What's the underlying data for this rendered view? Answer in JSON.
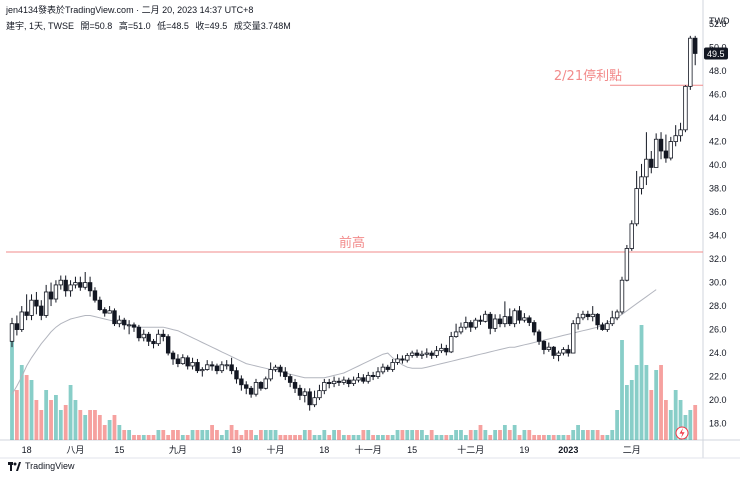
{
  "header": {
    "publisher": "jen4134發表於TradingView.com",
    "sep": "·",
    "datetime": "二月 20, 2023 14:37 UTC+8"
  },
  "legend": {
    "symbol": "建宇, 1天, TWSE",
    "open": "開=50.8",
    "high": "高=51.0",
    "low": "低=48.5",
    "close": "收=49.5",
    "volume": "成交量3.748M"
  },
  "footer": {
    "brand": "TradingView"
  },
  "colors": {
    "up": "#26a69a",
    "down": "#ef5350",
    "candle_up_body": "#ffffff",
    "candle_outline": "#131722",
    "annotation": "#f28b8b",
    "ma": "#b2b5be",
    "price_tag": "#131722"
  },
  "icons": {
    "footer_logo": "tradingview-logo-icon",
    "flash": "lightning-icon"
  },
  "chart_data": {
    "type": "candlestick",
    "currency": "TWD",
    "ylim": [
      16.6,
      53.2
    ],
    "y_ticks": [
      "18.0",
      "20.0",
      "22.0",
      "24.0",
      "26.0",
      "28.0",
      "30.0",
      "32.0",
      "34.0",
      "36.0",
      "38.0",
      "40.0",
      "42.0",
      "44.0",
      "46.0",
      "48.0",
      "50.0",
      "52.0"
    ],
    "x_ticks": [
      {
        "label": "18",
        "i": 3
      },
      {
        "label": "八月",
        "i": 13
      },
      {
        "label": "15",
        "i": 22
      },
      {
        "label": "九月",
        "i": 34
      },
      {
        "label": "19",
        "i": 46
      },
      {
        "label": "十月",
        "i": 54
      },
      {
        "label": "18",
        "i": 64
      },
      {
        "label": "十一月",
        "i": 73
      },
      {
        "label": "15",
        "i": 82
      },
      {
        "label": "十二月",
        "i": 94
      },
      {
        "label": "19",
        "i": 105
      },
      {
        "label": "2023",
        "i": 114
      },
      {
        "label": "二月",
        "i": 127
      }
    ],
    "last_price": "49.5",
    "annotations": [
      {
        "label": "前高",
        "price": 32.6
      },
      {
        "label": "2/21停利點",
        "price": 46.8
      }
    ],
    "ma_values": [
      20.5,
      21.2,
      22.0,
      22.9,
      23.6,
      24.2,
      24.8,
      25.3,
      25.8,
      26.2,
      26.5,
      26.7,
      26.9,
      27.0,
      27.1,
      27.2,
      27.2,
      27.1,
      27.0,
      26.9,
      26.8,
      26.7,
      26.6,
      26.5,
      26.4,
      26.3,
      26.2,
      26.2,
      26.2,
      26.2,
      26.2,
      26.2,
      26.1,
      26.0,
      25.9,
      25.7,
      25.5,
      25.3,
      25.1,
      24.9,
      24.7,
      24.5,
      24.3,
      24.1,
      23.9,
      23.7,
      23.5,
      23.3,
      23.1,
      23.0,
      22.9,
      22.8,
      22.7,
      22.6,
      22.5,
      22.4,
      22.3,
      22.2,
      22.1,
      22.0,
      21.9,
      21.9,
      21.9,
      21.9,
      21.9,
      22.0,
      22.1,
      22.2,
      22.3,
      22.5,
      22.7,
      22.9,
      23.1,
      23.3,
      23.5,
      23.7,
      23.9,
      24.0,
      23.6,
      23.3,
      23.0,
      22.8,
      22.7,
      22.7,
      22.7,
      22.8,
      22.9,
      23.0,
      23.1,
      23.2,
      23.3,
      23.4,
      23.5,
      23.6,
      23.7,
      23.8,
      23.9,
      24.0,
      24.1,
      24.2,
      24.3,
      24.4,
      24.5,
      24.5,
      24.6,
      24.7,
      24.8,
      24.9,
      25.0,
      25.1,
      25.2,
      25.3,
      25.4,
      25.5,
      25.6,
      25.7,
      25.8,
      25.9,
      26.0,
      26.1,
      26.2,
      26.4,
      26.6,
      26.8,
      27.0,
      27.3,
      27.6,
      27.9,
      28.2,
      28.5,
      28.8,
      29.1,
      29.4
    ],
    "candles": [
      [
        25.0,
        26.5,
        27.0,
        24.5,
        2
      ],
      [
        26.5,
        26.0,
        27.2,
        25.5,
        1
      ],
      [
        26.0,
        27.5,
        28.0,
        25.8,
        1.5
      ],
      [
        27.5,
        27.2,
        29.0,
        26.8,
        1.3
      ],
      [
        27.2,
        28.5,
        29.0,
        26.8,
        1.2
      ],
      [
        28.5,
        28.0,
        29.2,
        27.3,
        0.8
      ],
      [
        28.0,
        27.2,
        28.5,
        26.8,
        0.6
      ],
      [
        27.2,
        29.2,
        29.8,
        27.0,
        1.0
      ],
      [
        29.2,
        28.6,
        30.0,
        28.0,
        0.8
      ],
      [
        28.6,
        29.8,
        30.2,
        28.3,
        0.9
      ],
      [
        29.8,
        30.2,
        30.6,
        29.4,
        0.6
      ],
      [
        30.2,
        29.3,
        30.6,
        28.8,
        0.7
      ],
      [
        29.3,
        29.8,
        30.2,
        28.8,
        1.1
      ],
      [
        29.8,
        30.0,
        30.5,
        29.5,
        0.8
      ],
      [
        30.0,
        29.6,
        30.5,
        29.3,
        0.6
      ],
      [
        29.6,
        30.0,
        30.9,
        29.4,
        0.5
      ],
      [
        30.0,
        29.3,
        30.5,
        28.8,
        0.6
      ],
      [
        29.3,
        28.5,
        29.6,
        28.3,
        0.6
      ],
      [
        28.5,
        27.7,
        28.8,
        27.6,
        0.5
      ],
      [
        27.7,
        27.4,
        27.9,
        27.1,
        0.3
      ],
      [
        27.4,
        27.6,
        28.0,
        27.4,
        0.4
      ],
      [
        27.6,
        26.5,
        27.8,
        26.3,
        0.5
      ],
      [
        26.5,
        26.8,
        27.2,
        26.2,
        0.3
      ],
      [
        26.8,
        26.4,
        27.0,
        26.0,
        0.2
      ],
      [
        26.4,
        26.4,
        26.8,
        25.6,
        0.2
      ],
      [
        26.4,
        26.2,
        26.6,
        25.8,
        0.1
      ],
      [
        26.2,
        25.3,
        26.4,
        25.0,
        0.1
      ],
      [
        25.3,
        25.6,
        26.0,
        25.0,
        0.1
      ],
      [
        25.6,
        25.0,
        25.8,
        24.6,
        0.1
      ],
      [
        25.0,
        24.8,
        25.2,
        24.4,
        0.1
      ],
      [
        24.8,
        25.6,
        26.0,
        24.6,
        0.2
      ],
      [
        25.6,
        25.4,
        26.0,
        25.0,
        0.2
      ],
      [
        25.4,
        24.0,
        25.6,
        23.8,
        0.1
      ],
      [
        24.0,
        23.5,
        24.2,
        23.0,
        0.2
      ],
      [
        23.5,
        23.1,
        23.9,
        22.8,
        0.2
      ],
      [
        23.1,
        23.6,
        23.9,
        23.0,
        0.1
      ],
      [
        23.6,
        22.9,
        23.8,
        22.6,
        0.1
      ],
      [
        22.9,
        23.2,
        23.6,
        22.6,
        0.2
      ],
      [
        23.2,
        22.5,
        23.5,
        22.3,
        0.2
      ],
      [
        22.5,
        22.6,
        22.8,
        22.0,
        0.2
      ],
      [
        22.6,
        23.0,
        23.4,
        22.5,
        0.2
      ],
      [
        23.0,
        22.9,
        23.3,
        22.5,
        0.3
      ],
      [
        22.9,
        22.5,
        23.1,
        22.2,
        0.2
      ],
      [
        22.5,
        23.0,
        23.3,
        22.3,
        0.1
      ],
      [
        23.0,
        23.0,
        23.4,
        22.6,
        0.2
      ],
      [
        23.0,
        22.5,
        23.6,
        22.2,
        0.3
      ],
      [
        22.5,
        21.8,
        22.8,
        21.4,
        0.2
      ],
      [
        21.8,
        21.3,
        22.1,
        20.8,
        0.1
      ],
      [
        21.3,
        21.0,
        21.6,
        20.5,
        0.2
      ],
      [
        21.0,
        20.5,
        21.2,
        20.2,
        0.2
      ],
      [
        20.5,
        21.5,
        21.8,
        20.3,
        0.1
      ],
      [
        21.5,
        21.0,
        21.6,
        20.8,
        0.2
      ],
      [
        21.0,
        21.8,
        22.0,
        20.9,
        0.2
      ],
      [
        21.8,
        22.6,
        23.2,
        21.6,
        0.2
      ],
      [
        22.6,
        22.8,
        23.0,
        22.4,
        0.2
      ],
      [
        22.8,
        22.4,
        23.0,
        22.0,
        0.1
      ],
      [
        22.4,
        22.0,
        22.8,
        21.7,
        0.1
      ],
      [
        22.0,
        21.5,
        22.2,
        21.1,
        0.1
      ],
      [
        21.5,
        21.0,
        21.8,
        20.6,
        0.1
      ],
      [
        21.0,
        20.4,
        21.3,
        20.0,
        0.1
      ],
      [
        20.4,
        20.7,
        21.0,
        19.8,
        0.2
      ],
      [
        20.7,
        19.6,
        21.0,
        19.1,
        0.2
      ],
      [
        19.6,
        20.2,
        20.8,
        19.4,
        0.1
      ],
      [
        20.2,
        20.8,
        21.3,
        20.0,
        0.1
      ],
      [
        20.8,
        21.5,
        21.8,
        20.5,
        0.2
      ],
      [
        21.5,
        21.4,
        21.8,
        21.0,
        0.1
      ],
      [
        21.4,
        21.6,
        22.0,
        21.1,
        0.2
      ],
      [
        21.6,
        21.5,
        21.9,
        21.2,
        0.2
      ],
      [
        21.5,
        21.7,
        22.0,
        21.3,
        0.1
      ],
      [
        21.7,
        21.4,
        21.9,
        21.1,
        0.1
      ],
      [
        21.4,
        21.7,
        22.0,
        21.2,
        0.1
      ],
      [
        21.7,
        21.9,
        22.3,
        21.5,
        0.1
      ],
      [
        21.9,
        21.6,
        22.2,
        21.4,
        0.2
      ],
      [
        21.6,
        22.1,
        22.4,
        21.4,
        0.2
      ],
      [
        22.1,
        22.0,
        22.4,
        21.7,
        0.1
      ],
      [
        22.0,
        22.4,
        22.8,
        21.8,
        0.1
      ],
      [
        22.4,
        22.8,
        23.1,
        22.2,
        0.1
      ],
      [
        22.8,
        22.6,
        23.0,
        22.4,
        0.1
      ],
      [
        22.6,
        23.2,
        23.5,
        22.4,
        0.1
      ],
      [
        23.2,
        23.5,
        23.9,
        23.0,
        0.2
      ],
      [
        23.5,
        23.4,
        23.8,
        23.1,
        0.2
      ],
      [
        23.4,
        23.8,
        24.0,
        23.2,
        0.2
      ],
      [
        23.8,
        24.0,
        24.2,
        23.6,
        0.2
      ],
      [
        24.0,
        23.8,
        24.3,
        23.6,
        0.2
      ],
      [
        23.8,
        23.9,
        24.2,
        23.5,
        0.2
      ],
      [
        23.9,
        24.0,
        24.4,
        23.6,
        0.1
      ],
      [
        24.0,
        23.8,
        24.2,
        23.5,
        0.2
      ],
      [
        23.8,
        24.2,
        24.6,
        23.6,
        0.1
      ],
      [
        24.2,
        24.4,
        24.8,
        24.0,
        0.1
      ],
      [
        24.4,
        24.1,
        24.7,
        23.8,
        0.1
      ],
      [
        24.1,
        25.4,
        25.8,
        24.0,
        0.1
      ],
      [
        25.4,
        25.8,
        26.5,
        25.3,
        0.2
      ],
      [
        25.8,
        26.2,
        26.6,
        25.6,
        0.2
      ],
      [
        26.2,
        26.6,
        27.1,
        26.0,
        0.1
      ],
      [
        26.6,
        26.2,
        26.8,
        25.8,
        0.2
      ],
      [
        26.2,
        26.8,
        27.0,
        26.0,
        0.2
      ],
      [
        26.8,
        26.7,
        27.2,
        26.4,
        0.3
      ],
      [
        26.7,
        27.3,
        27.6,
        26.6,
        0.2
      ],
      [
        27.3,
        26.1,
        27.5,
        25.6,
        0.1
      ],
      [
        26.1,
        26.9,
        27.3,
        25.8,
        0.2
      ],
      [
        26.9,
        26.5,
        27.3,
        26.2,
        0.2
      ],
      [
        26.5,
        27.1,
        28.4,
        26.2,
        0.3
      ],
      [
        27.1,
        26.5,
        27.8,
        26.3,
        0.2
      ],
      [
        26.5,
        27.6,
        27.8,
        26.2,
        0.3
      ],
      [
        27.6,
        26.8,
        28.0,
        26.5,
        0.1
      ],
      [
        26.8,
        27.0,
        27.4,
        26.6,
        0.2
      ],
      [
        27.0,
        26.6,
        27.2,
        26.3,
        0.2
      ],
      [
        26.6,
        25.8,
        26.8,
        25.5,
        0.1
      ],
      [
        25.8,
        25.0,
        26.0,
        24.7,
        0.1
      ],
      [
        25.0,
        24.3,
        25.1,
        23.9,
        0.1
      ],
      [
        24.3,
        24.5,
        24.9,
        24.1,
        0.1
      ],
      [
        24.5,
        23.8,
        24.6,
        23.5,
        0.1
      ],
      [
        23.8,
        24.0,
        24.2,
        23.3,
        0.1
      ],
      [
        24.0,
        24.3,
        24.5,
        23.8,
        0.1
      ],
      [
        24.3,
        24.0,
        24.7,
        23.7,
        0.1
      ],
      [
        24.0,
        26.5,
        26.8,
        24.1,
        0.2
      ],
      [
        26.5,
        27.0,
        27.4,
        26.0,
        0.3
      ],
      [
        27.0,
        27.3,
        27.6,
        26.8,
        0.2
      ],
      [
        27.3,
        27.1,
        27.6,
        26.8,
        0.2
      ],
      [
        27.1,
        27.3,
        28.0,
        26.7,
        0.2
      ],
      [
        27.3,
        26.4,
        27.4,
        26.0,
        0.2
      ],
      [
        26.4,
        26.0,
        26.6,
        25.9,
        0.1
      ],
      [
        26.0,
        26.5,
        26.8,
        25.8,
        0.1
      ],
      [
        26.5,
        27.0,
        27.6,
        26.3,
        0.2
      ],
      [
        27.0,
        27.5,
        27.7,
        26.8,
        0.6
      ],
      [
        27.5,
        30.2,
        30.5,
        27.3,
        2
      ],
      [
        30.2,
        32.9,
        33.2,
        30.1,
        1.1
      ],
      [
        32.9,
        35.0,
        35.3,
        32.7,
        1.2
      ],
      [
        35.0,
        38.0,
        39.5,
        34.8,
        1.5
      ],
      [
        38.0,
        39.0,
        40.1,
        37.5,
        2.3
      ],
      [
        39.0,
        40.5,
        42.8,
        38.3,
        1.5
      ],
      [
        40.5,
        39.8,
        41.2,
        39.3,
        1.0
      ],
      [
        39.8,
        42.2,
        42.7,
        40.0,
        1.4
      ],
      [
        42.2,
        41.2,
        42.8,
        40.5,
        1.5
      ],
      [
        41.2,
        40.6,
        42.6,
        40.2,
        0.8
      ],
      [
        40.6,
        42.0,
        42.4,
        40.4,
        0.6
      ],
      [
        42.0,
        42.5,
        43.4,
        41.6,
        1.0
      ],
      [
        42.5,
        43.0,
        43.6,
        42.0,
        0.8
      ],
      [
        43.0,
        46.7,
        46.8,
        42.8,
        0.5
      ],
      [
        46.7,
        50.8,
        51.0,
        46.4,
        0.6
      ],
      [
        50.8,
        49.5,
        51.0,
        48.5,
        0.7
      ]
    ]
  }
}
